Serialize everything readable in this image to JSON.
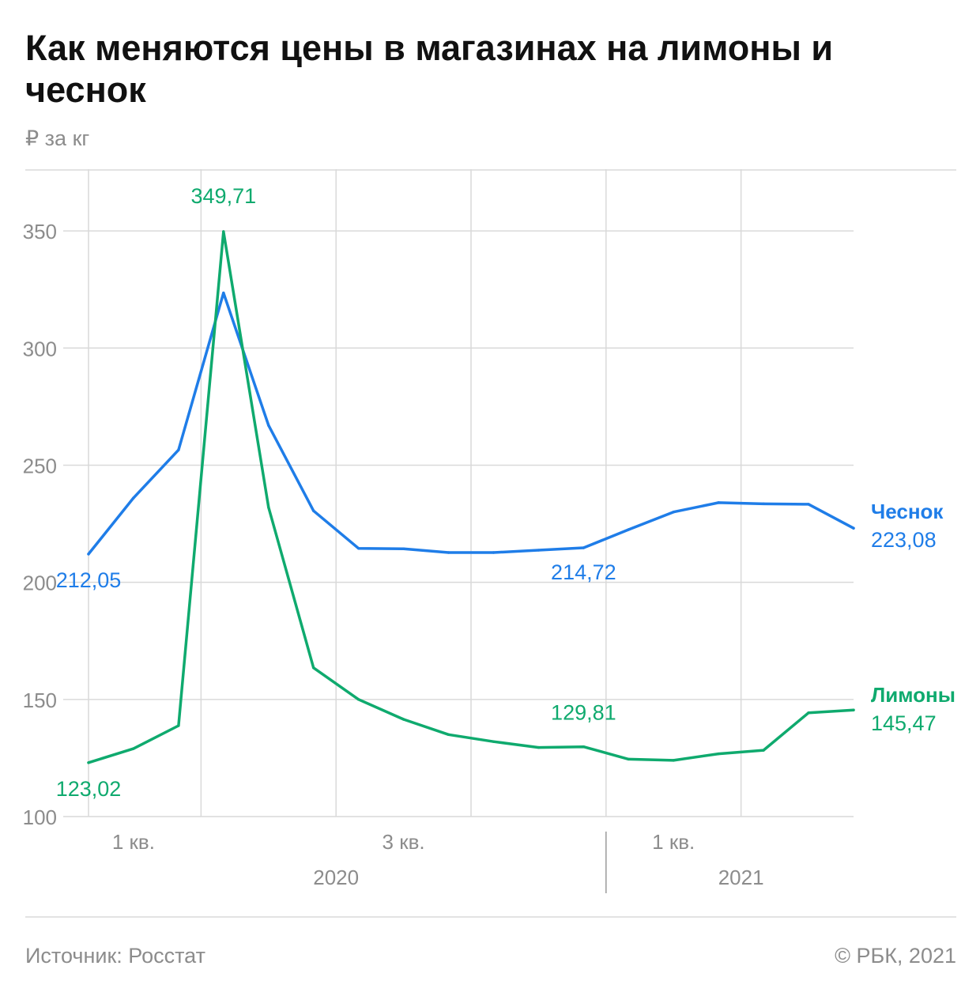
{
  "title": "Как меняются цены в магазинах на лимоны и чеснок",
  "unit": "₽ за кг",
  "source": "Источник: Росстат",
  "copyright": "© РБК, 2021",
  "colors": {
    "garlic": "#1f7de8",
    "lemons": "#0faa6e",
    "grid": "#d9d9d9",
    "axis_text": "#8c8c8c"
  },
  "chart_data": {
    "type": "line",
    "x": [
      "2020-01",
      "2020-02",
      "2020-03",
      "2020-04",
      "2020-05",
      "2020-06",
      "2020-07",
      "2020-08",
      "2020-09",
      "2020-10",
      "2020-11",
      "2020-12",
      "2021-01",
      "2021-02",
      "2021-03",
      "2021-04",
      "2021-05",
      "2021-06"
    ],
    "ylim": [
      100,
      375
    ],
    "yticks": [
      100,
      150,
      200,
      250,
      300,
      350
    ],
    "ytick_labels": [
      "100",
      "150",
      "200",
      "250",
      "300",
      "350"
    ],
    "quarter_labels": [
      "1 кв.",
      "3 кв.",
      "1 кв."
    ],
    "year_labels": [
      "2020",
      "2021"
    ],
    "grid": true,
    "legend": "inline-right",
    "series": [
      {
        "name": "Чеснок",
        "values": [
          212.05,
          236,
          256.5,
          323.5,
          267,
          230.5,
          214.5,
          214.3,
          212.7,
          212.7,
          213.7,
          214.72,
          222.5,
          230,
          234,
          233.5,
          233.3,
          223.08
        ],
        "last_label": "223,08",
        "annotations": [
          {
            "index": 0,
            "label": "212,05"
          },
          {
            "index": 11,
            "label": "214,72"
          }
        ]
      },
      {
        "name": "Лимоны",
        "values": [
          123.02,
          129,
          138.8,
          349.71,
          232,
          163.5,
          150,
          141.5,
          135,
          132,
          129.5,
          129.81,
          124.5,
          124,
          126.8,
          128.3,
          144.3,
          145.47
        ],
        "last_label": "145,47",
        "annotations": [
          {
            "index": 0,
            "label": "123,02"
          },
          {
            "index": 3,
            "label": "349,71"
          },
          {
            "index": 11,
            "label": "129,81"
          }
        ]
      }
    ]
  }
}
